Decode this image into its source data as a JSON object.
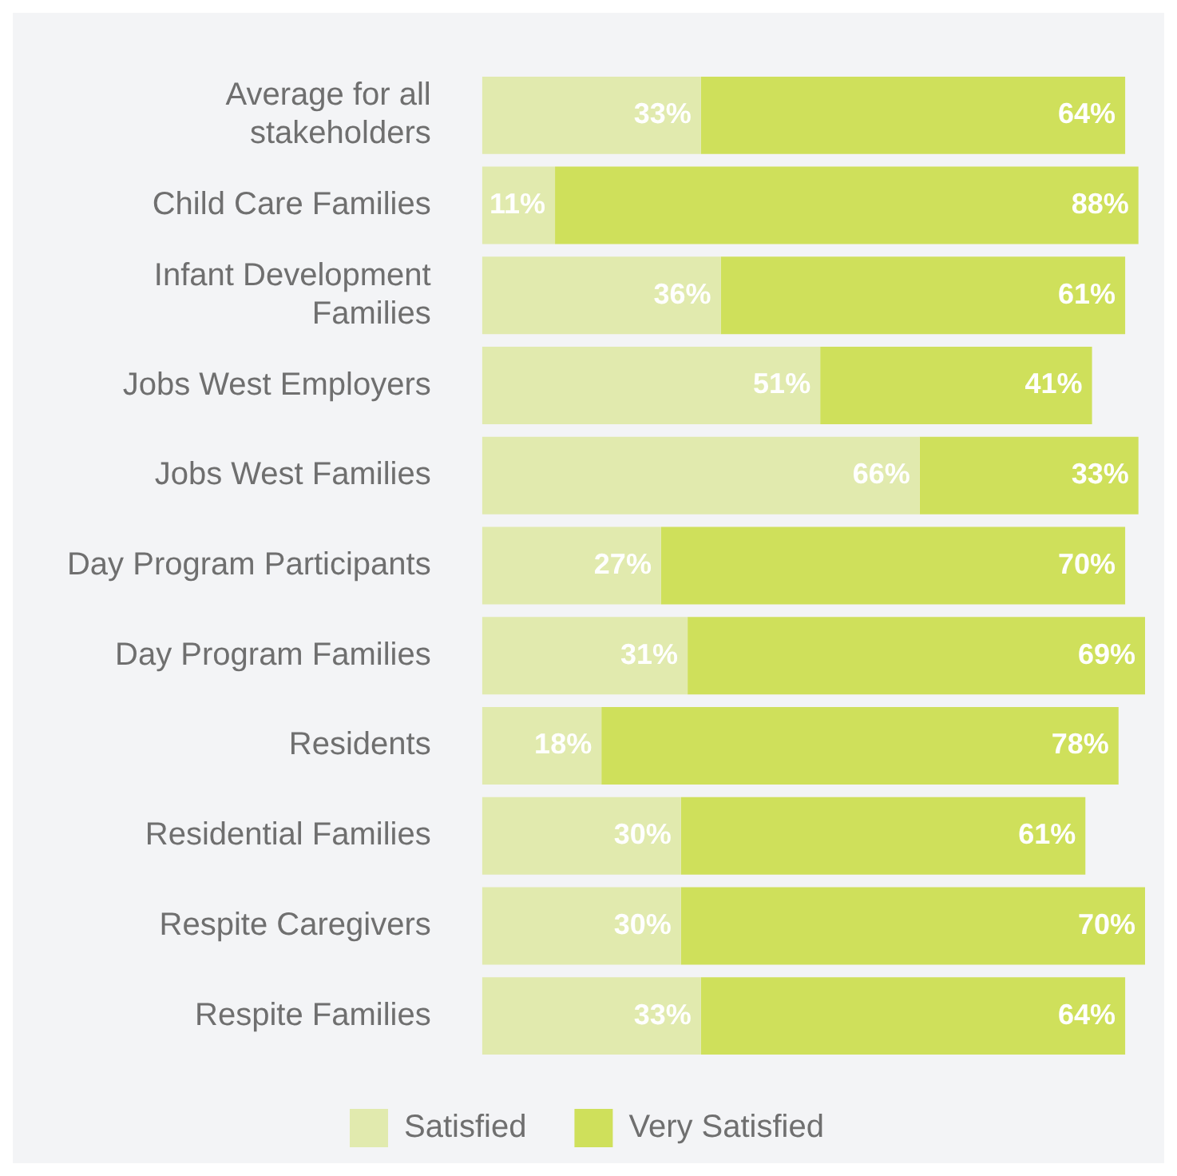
{
  "chart_data": {
    "type": "bar",
    "orientation": "horizontal",
    "stacked": true,
    "legend": "bottom",
    "categories": [
      "Average for all stakeholders",
      "Child Care Families",
      "Infant Development Families",
      "Jobs West Employers",
      "Jobs West Families",
      "Day Program Participants",
      "Day Program Families",
      "Residents",
      "Residential Families",
      "Respite Caregivers",
      "Respite Families"
    ],
    "series": [
      {
        "name": "Satisfied",
        "color": "#e1eaae",
        "values": [
          33,
          11,
          36,
          51,
          66,
          27,
          31,
          18,
          30,
          30,
          33
        ],
        "value_labels": [
          "33%",
          "11%",
          "36%",
          "51%",
          "66%",
          "27%",
          "31%",
          "18%",
          "30%",
          "30%",
          "33%"
        ]
      },
      {
        "name": "Very Satisfied",
        "color": "#cfe05b",
        "values": [
          64,
          88,
          61,
          41,
          33,
          70,
          69,
          78,
          61,
          70,
          64
        ],
        "value_labels": [
          "64%",
          "88%",
          "61%",
          "41%",
          "33%",
          "70%",
          "69%",
          "78%",
          "61%",
          "70%",
          "64%"
        ]
      }
    ]
  }
}
